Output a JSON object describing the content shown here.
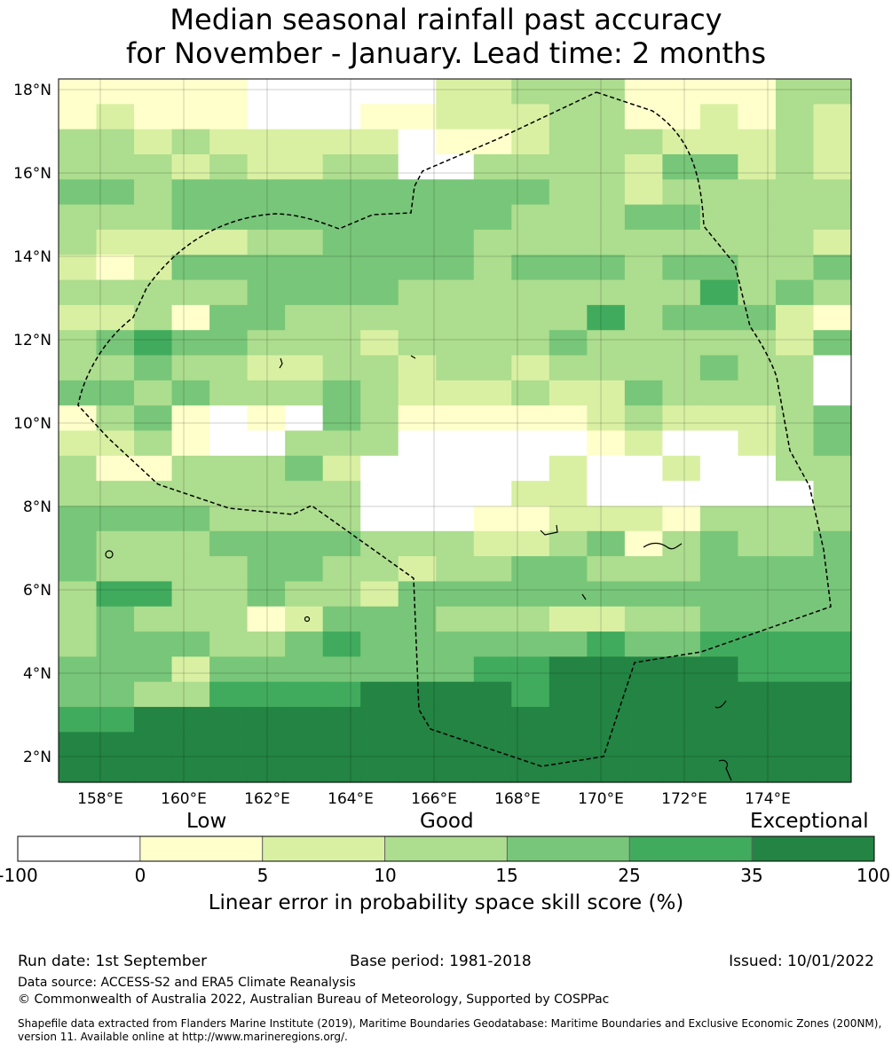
{
  "title_line1": "Median seasonal rainfall past accuracy",
  "title_line2": "for November - January. Lead time: 2 months",
  "map": {
    "lat_labels": [
      "18°N",
      "16°N",
      "14°N",
      "12°N",
      "10°N",
      "8°N",
      "6°N",
      "4°N",
      "2°N"
    ],
    "lon_labels": [
      "158°E",
      "160°E",
      "162°E",
      "164°E",
      "166°E",
      "168°E",
      "170°E",
      "172°E",
      "174°E"
    ],
    "boundary_style": "dashed black EEZ outline",
    "grid_rows_north_to_south": [
      "111110000022333111133",
      "121110001122233112132",
      "332322222011233322232",
      "333232233003333244232",
      "443444444444433233333",
      "333444444444333443333",
      "322223344443333333332",
      "212444444443444344334",
      "333334444333333335343",
      "223144333333335344421",
      "345443332333343333324",
      "334332233233233334330",
      "443433343222322433330",
      "134101043111112322234",
      "223100333000001200234",
      "311333420000020020033",
      "333333330000220000003",
      "444433330001122213333",
      "433344443332234134334",
      "433334433233443334444",
      "355334332444444444444",
      "343331244433322334444",
      "344433454444445445555",
      "444244444445566666555",
      "443355556666566666666",
      "556666666666666666666",
      "666666666666666666666",
      "666666666666666666666"
    ]
  },
  "colorbar": {
    "categories": [
      "Low",
      "Good",
      "Exceptional"
    ],
    "colors": [
      "#ffffff",
      "#ffffcc",
      "#d9f0a3",
      "#addd8e",
      "#78c679",
      "#41ab5d",
      "#238443"
    ],
    "ticks": [
      "-100",
      "0",
      "5",
      "10",
      "15",
      "25",
      "35",
      "100"
    ],
    "axis_label": "Linear error in probability space skill score (%)"
  },
  "footer": {
    "run_date": "Run date: 1st September",
    "base_period": "Base period: 1981-2018",
    "issued": "Issued: 10/01/2022",
    "data_source": "Data source: ACCESS-S2 and ERA5 Climate Reanalysis",
    "copyright": "© Commonwealth of Australia 2022, Australian Bureau of Meteorology, Supported by COSPPac",
    "shapefile_line1": "Shapefile data extracted from Flanders Marine Institute (2019), Maritime Boundaries Geodatabase: Maritime Boundaries and Exclusive Economic Zones (200NM),",
    "shapefile_line2": "version 11. Available online at http://www.marineregions.org/."
  }
}
